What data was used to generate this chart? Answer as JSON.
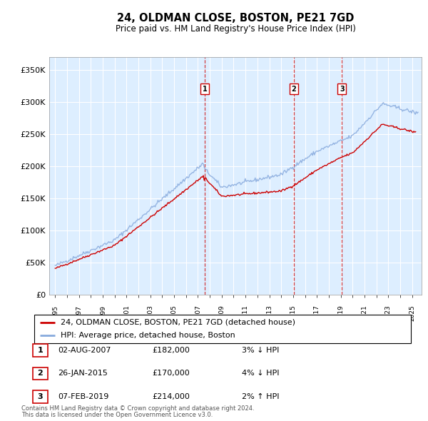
{
  "title": "24, OLDMAN CLOSE, BOSTON, PE21 7GD",
  "subtitle": "Price paid vs. HM Land Registry's House Price Index (HPI)",
  "legend_line1": "24, OLDMAN CLOSE, BOSTON, PE21 7GD (detached house)",
  "legend_line2": "HPI: Average price, detached house, Boston",
  "footer1": "Contains HM Land Registry data © Crown copyright and database right 2024.",
  "footer2": "This data is licensed under the Open Government Licence v3.0.",
  "transactions": [
    {
      "num": 1,
      "date": "02-AUG-2007",
      "price": "£182,000",
      "change": "3% ↓ HPI"
    },
    {
      "num": 2,
      "date": "26-JAN-2015",
      "price": "£170,000",
      "change": "4% ↓ HPI"
    },
    {
      "num": 3,
      "date": "07-FEB-2019",
      "price": "£214,000",
      "change": "2% ↑ HPI"
    }
  ],
  "vline_dates": [
    2007.58,
    2015.07,
    2019.1
  ],
  "vline_labels": [
    "1",
    "2",
    "3"
  ],
  "plot_bg_color": "#ddeeff",
  "grid_color": "#ffffff",
  "line_color_red": "#cc0000",
  "line_color_blue": "#88aadd",
  "ylim": [
    0,
    370000
  ],
  "yticks": [
    0,
    50000,
    100000,
    150000,
    200000,
    250000,
    300000,
    350000
  ],
  "ytick_labels": [
    "£0",
    "£50K",
    "£100K",
    "£150K",
    "£200K",
    "£250K",
    "£300K",
    "£350K"
  ],
  "xlim_start": 1994.5,
  "xlim_end": 2025.8
}
